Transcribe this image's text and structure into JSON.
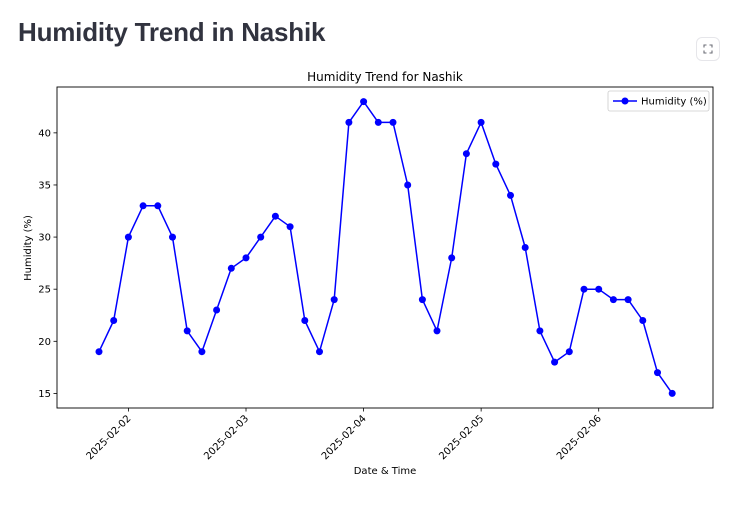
{
  "page": {
    "title": "Humidity Trend in Nashik"
  },
  "toolbar": {
    "fullscreen_icon": "fullscreen-expand-icon"
  },
  "colors": {
    "series": "#0000ff",
    "axis": "#000000",
    "title_text": "#31333f"
  },
  "chart_data": {
    "type": "line",
    "title": "Humidity Trend for Nashik",
    "xlabel": "Date & Time",
    "ylabel": "Humidity (%)",
    "x_tick_labels": [
      "2025-02-02",
      "2025-02-03",
      "2025-02-04",
      "2025-02-05",
      "2025-02-06"
    ],
    "y_ticks": [
      15,
      20,
      25,
      30,
      35,
      40
    ],
    "xlim": [
      "2025-02-01 09:25",
      "2025-02-06 23:20"
    ],
    "ylim": [
      13.6,
      44.4
    ],
    "grid": false,
    "legend": "top-right",
    "marker": "circle",
    "series": [
      {
        "name": "Humidity (%)",
        "x": [
          "2025-02-01 18:00",
          "2025-02-01 21:00",
          "2025-02-02 00:00",
          "2025-02-02 03:00",
          "2025-02-02 06:00",
          "2025-02-02 09:00",
          "2025-02-02 12:00",
          "2025-02-02 15:00",
          "2025-02-02 18:00",
          "2025-02-02 21:00",
          "2025-02-03 00:00",
          "2025-02-03 03:00",
          "2025-02-03 06:00",
          "2025-02-03 09:00",
          "2025-02-03 12:00",
          "2025-02-03 15:00",
          "2025-02-03 18:00",
          "2025-02-03 21:00",
          "2025-02-04 00:00",
          "2025-02-04 03:00",
          "2025-02-04 06:00",
          "2025-02-04 09:00",
          "2025-02-04 12:00",
          "2025-02-04 15:00",
          "2025-02-04 18:00",
          "2025-02-04 21:00",
          "2025-02-05 00:00",
          "2025-02-05 03:00",
          "2025-02-05 06:00",
          "2025-02-05 09:00",
          "2025-02-05 12:00",
          "2025-02-05 15:00",
          "2025-02-05 18:00",
          "2025-02-05 21:00",
          "2025-02-06 00:00",
          "2025-02-06 03:00",
          "2025-02-06 06:00",
          "2025-02-06 09:00",
          "2025-02-06 12:00",
          "2025-02-06 15:00"
        ],
        "values": [
          19,
          22,
          30,
          33,
          33,
          30,
          21,
          19,
          23,
          27,
          28,
          30,
          32,
          31,
          22,
          19,
          24,
          41,
          43,
          41,
          41,
          35,
          24,
          21,
          28,
          38,
          41,
          37,
          34,
          29,
          21,
          18,
          19,
          25,
          25,
          24,
          24,
          22,
          17,
          15
        ]
      }
    ]
  }
}
